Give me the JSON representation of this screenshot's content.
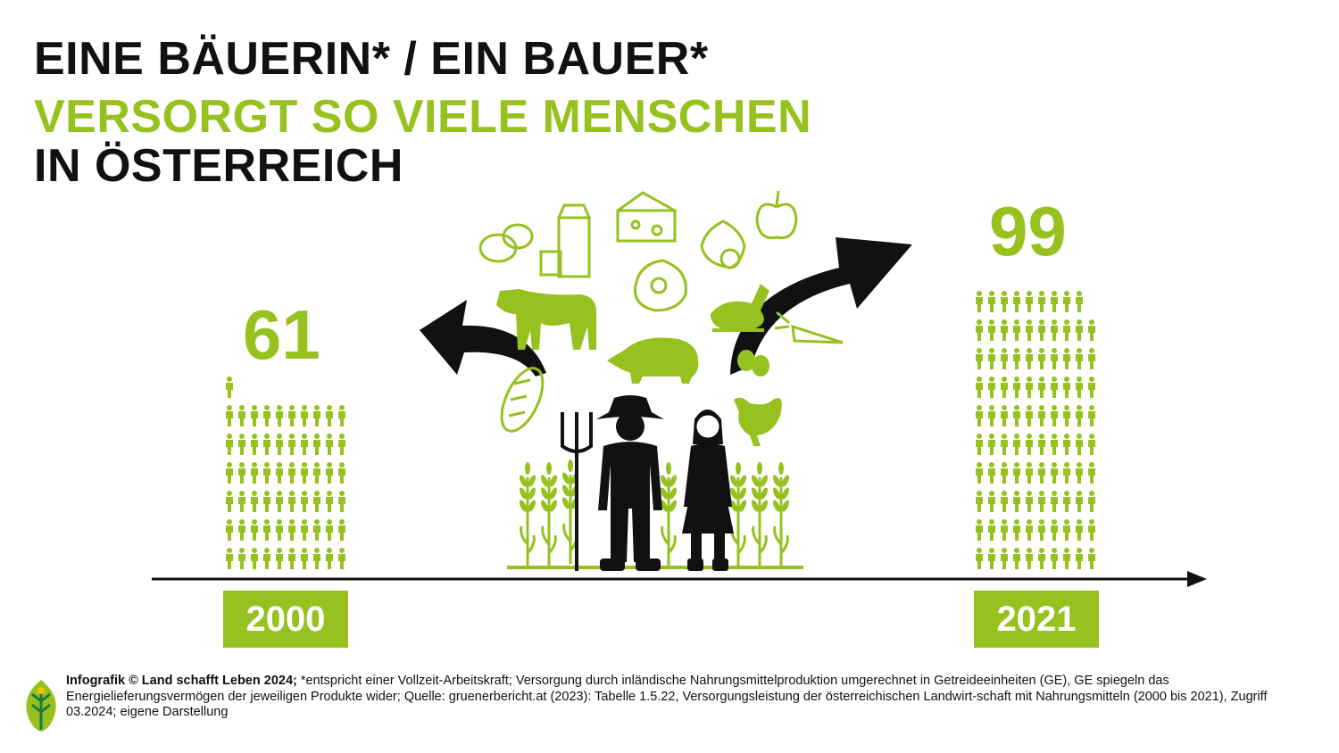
{
  "title": {
    "line1": "EINE BÄUERIN* / EIN BAUER*",
    "line2": "VERSORGT SO VIELE MENSCHEN",
    "line3": "IN ÖSTERREICH"
  },
  "years": [
    {
      "year": "2000",
      "people": 61
    },
    {
      "year": "2021",
      "people": 99
    }
  ],
  "colors": {
    "accent": "#96c11f",
    "dark": "#111111"
  },
  "icons": [
    "person-icon",
    "farmer-icon",
    "farmer-woman-icon",
    "wheat-icon",
    "cow-icon",
    "pig-icon",
    "chicken-icon",
    "bread-icon",
    "potato-icon",
    "milk-icon",
    "cheese-icon",
    "meat-icon",
    "onion-icon",
    "apple-icon",
    "roast-chicken-icon",
    "carrot-icon",
    "egg-icon",
    "arrow-icon",
    "logo-leaf-icon"
  ],
  "footer": {
    "credit": "Infografik © Land schafft Leben 2024;",
    "text": " *entspricht einer Vollzeit-Arbeitskraft; Versorgung durch inländische Nahrungsmittelproduktion umgerechnet in Getreideeinheiten (GE), GE spiegeln das Energielieferungsvermögen der jeweiligen Produkte wider; Quelle: gruenerbericht.at (2023): Tabelle 1.5.22, Versorgungsleistung der österreichischen Landwirt-schaft mit Nahrungsmitteln (2000 bis 2021), Zugriff 03.2024; eigene Darstellung"
  }
}
